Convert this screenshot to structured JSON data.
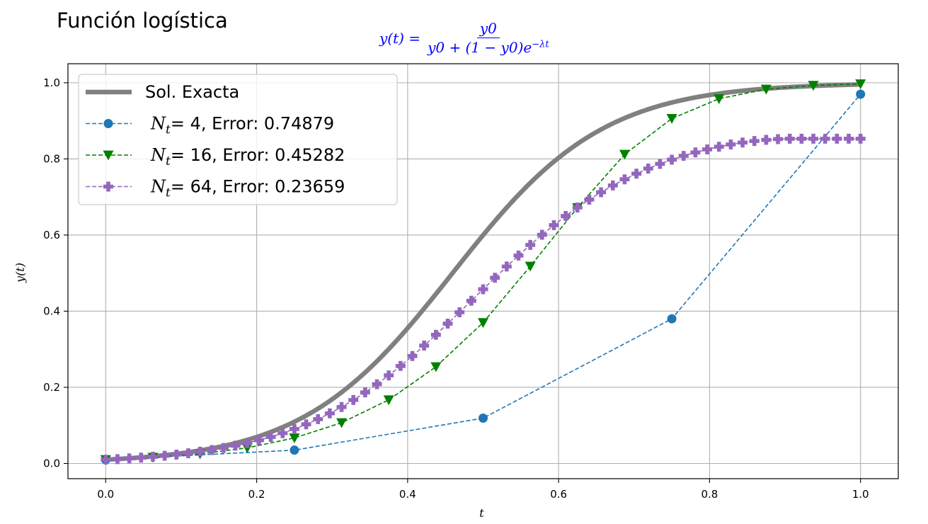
{
  "figure": {
    "title": "Función logística",
    "formula": {
      "lhs": "y(t) =",
      "numerator": "y0",
      "denominator_main": "y0 + (1 − y0)e",
      "denominator_exp": "−λt"
    }
  },
  "colors": {
    "exact": "#808080",
    "nt4": "#1f77b4",
    "nt16": "#008000",
    "nt64": "#9467bd",
    "formula": "#0000ff",
    "grid": "#b0b0b0"
  },
  "legend": {
    "placement": "upper-left",
    "entries": [
      {
        "series": "exact",
        "text": "Sol. Exacta"
      },
      {
        "series": "nt4",
        "sub": "t",
        "text": "= 4, Error: 0.74879"
      },
      {
        "series": "nt16",
        "sub": "t",
        "text": "= 16, Error: 0.45282"
      },
      {
        "series": "nt64",
        "sub": "t",
        "text": "= 64, Error: 0.23659"
      }
    ]
  },
  "chart_data": {
    "type": "line",
    "title": "",
    "xlabel": "t",
    "ylabel": "y(t)",
    "xlim": [
      -0.05,
      1.05
    ],
    "ylim": [
      -0.04,
      1.05
    ],
    "xticks": [
      "0.0",
      "0.2",
      "0.4",
      "0.6",
      "0.8",
      "1.0"
    ],
    "yticks": [
      "0.0",
      "0.2",
      "0.4",
      "0.6",
      "0.8",
      "1.0"
    ],
    "grid": true,
    "exact": {
      "name": "Sol. Exacta",
      "y0": 0.01,
      "lambda": 10
    },
    "series": [
      {
        "name": "Nt= 4, Error: 0.74879",
        "key": "nt4",
        "marker": "circle",
        "x": [
          0.0,
          0.25,
          0.5,
          0.75,
          1.0
        ],
        "y": [
          0.01,
          0.035,
          0.119,
          0.38,
          0.97
        ]
      },
      {
        "name": "Nt= 16, Error: 0.45282",
        "key": "nt16",
        "marker": "triangle-down",
        "x": [
          0.0,
          0.0625,
          0.125,
          0.1875,
          0.25,
          0.3125,
          0.375,
          0.4375,
          0.5,
          0.5625,
          0.625,
          0.6875,
          0.75,
          0.8125,
          0.875,
          0.9375,
          1.0
        ],
        "y": [
          0.01,
          0.016,
          0.025,
          0.041,
          0.067,
          0.107,
          0.167,
          0.254,
          0.37,
          0.518,
          0.672,
          0.812,
          0.906,
          0.958,
          0.983,
          0.993,
          0.997
        ]
      },
      {
        "name": "Nt= 64, Error: 0.23659",
        "key": "nt64",
        "marker": "plus",
        "x": [
          0.0,
          0.015625,
          0.03125,
          0.046875,
          0.0625,
          0.078125,
          0.09375,
          0.109375,
          0.125,
          0.140625,
          0.15625,
          0.171875,
          0.1875,
          0.203125,
          0.21875,
          0.234375,
          0.25,
          0.265625,
          0.28125,
          0.296875,
          0.3125,
          0.328125,
          0.34375,
          0.359375,
          0.375,
          0.390625,
          0.40625,
          0.421875,
          0.4375,
          0.453125,
          0.46875,
          0.484375,
          0.5,
          0.515625,
          0.53125,
          0.546875,
          0.5625,
          0.578125,
          0.59375,
          0.609375,
          0.625,
          0.640625,
          0.65625,
          0.671875,
          0.6875,
          0.703125,
          0.71875,
          0.734375,
          0.75,
          0.765625,
          0.78125,
          0.796875,
          0.8125,
          0.828125,
          0.84375,
          0.859375,
          0.875,
          0.890625,
          0.90625,
          0.921875,
          0.9375,
          0.953125,
          0.96875,
          0.984375,
          1.0
        ],
        "y": [
          0.01,
          0.0115,
          0.0133,
          0.0153,
          0.0176,
          0.0203,
          0.0233,
          0.0268,
          0.0308,
          0.0354,
          0.0407,
          0.0467,
          0.0534,
          0.0611,
          0.0697,
          0.0795,
          0.0905,
          0.1028,
          0.1164,
          0.1316,
          0.1483,
          0.1667,
          0.1866,
          0.2082,
          0.2314,
          0.2561,
          0.2822,
          0.3096,
          0.338,
          0.3673,
          0.3971,
          0.4273,
          0.4576,
          0.4877,
          0.5173,
          0.5461,
          0.574,
          0.6007,
          0.626,
          0.65,
          0.6724,
          0.6932,
          0.7125,
          0.7302,
          0.7464,
          0.7612,
          0.7747,
          0.7869,
          0.798,
          0.808,
          0.817,
          0.825,
          0.832,
          0.838,
          0.843,
          0.847,
          0.85,
          0.852,
          0.853,
          0.853,
          0.853,
          0.853,
          0.853,
          0.853,
          0.853
        ]
      }
    ]
  }
}
